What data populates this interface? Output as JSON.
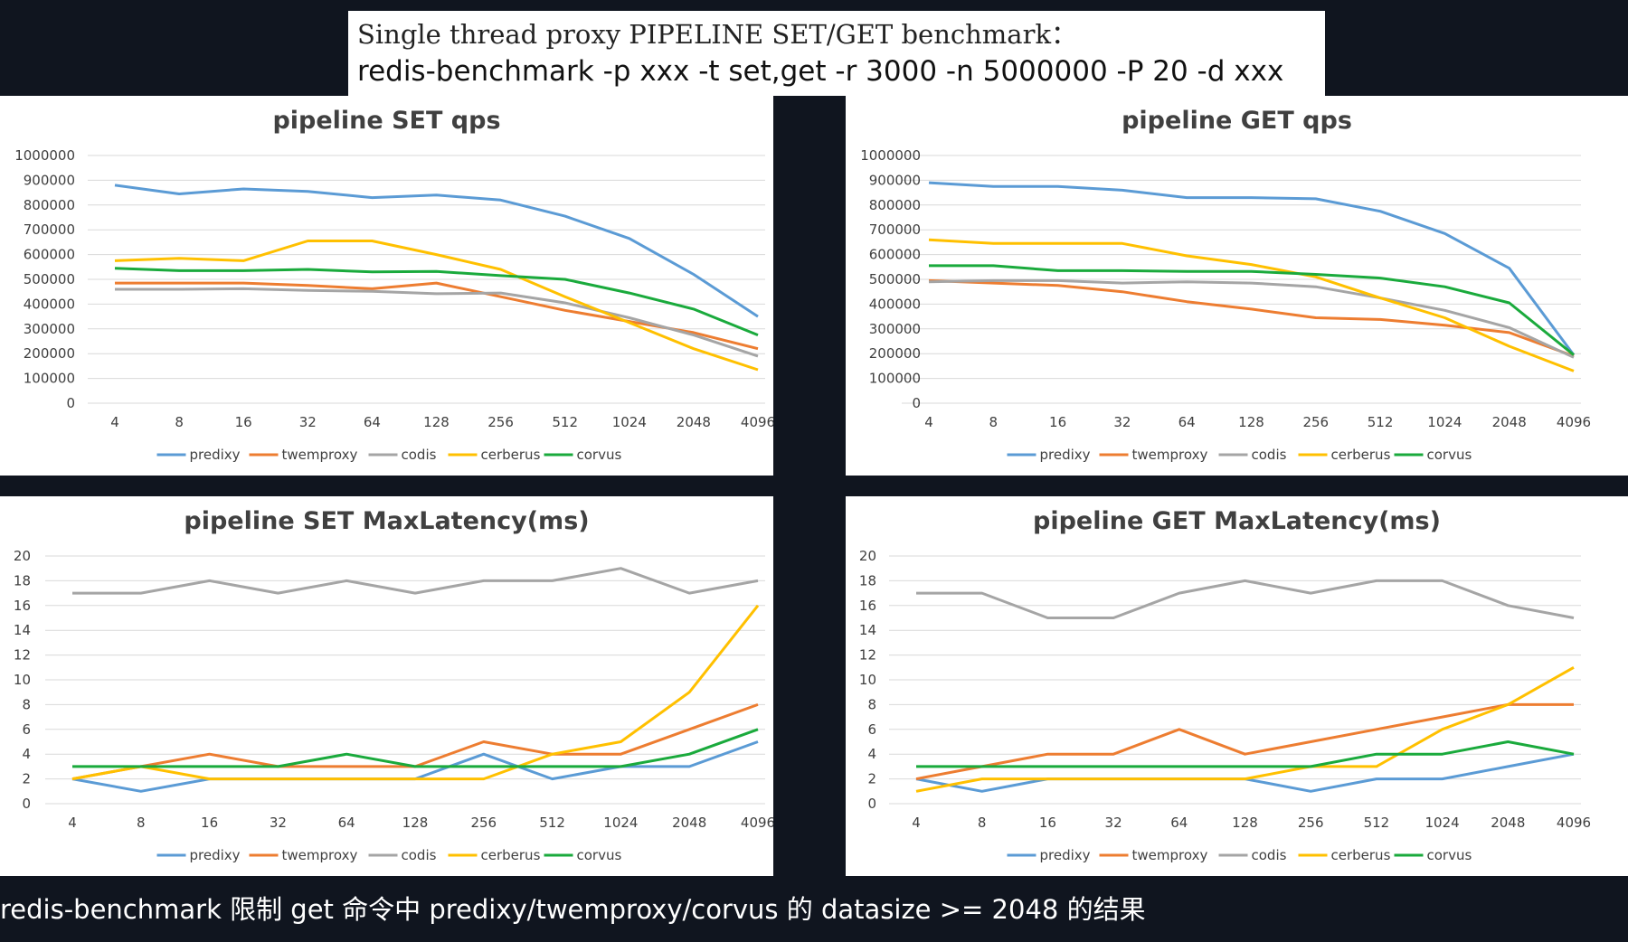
{
  "header": {
    "line1": "Single thread proxy PIPELINE SET/GET benchmark：",
    "line2": "redis-benchmark -p xxx -t set,get -r 3000 -n 5000000 -P 20 -d xxx"
  },
  "footer": {
    "text": "redis-benchmark 限制 get 命令中 predixy/twemproxy/corvus 的 datasize >= 2048 的结果"
  },
  "colors": {
    "predixy": "#5b9bd5",
    "twemproxy": "#ed7d31",
    "codis": "#a5a5a5",
    "cerberus": "#ffc000",
    "corvus": "#1aaa3c"
  },
  "chart_data": [
    {
      "type": "line",
      "title": "pipeline  SET qps",
      "categories": [
        "4",
        "8",
        "16",
        "32",
        "64",
        "128",
        "256",
        "512",
        "1024",
        "2048",
        "4096"
      ],
      "ylim": [
        0,
        1000000
      ],
      "yticks": [
        "0",
        "100000",
        "200000",
        "300000",
        "400000",
        "500000",
        "600000",
        "700000",
        "800000",
        "900000",
        "1000000"
      ],
      "legend": "bottom",
      "grid": true,
      "series": [
        {
          "name": "predixy",
          "values": [
            880000,
            845000,
            865000,
            855000,
            830000,
            840000,
            820000,
            755000,
            665000,
            520000,
            350000
          ]
        },
        {
          "name": "twemproxy",
          "values": [
            485000,
            485000,
            485000,
            475000,
            462000,
            485000,
            430000,
            375000,
            330000,
            285000,
            220000
          ]
        },
        {
          "name": "codis",
          "values": [
            460000,
            460000,
            462000,
            455000,
            452000,
            442000,
            445000,
            405000,
            345000,
            275000,
            190000
          ]
        },
        {
          "name": "cerberus",
          "values": [
            575000,
            585000,
            575000,
            655000,
            655000,
            600000,
            540000,
            430000,
            325000,
            220000,
            135000
          ]
        },
        {
          "name": "corvus",
          "values": [
            545000,
            535000,
            535000,
            540000,
            530000,
            532000,
            515000,
            500000,
            445000,
            380000,
            275000
          ]
        }
      ]
    },
    {
      "type": "line",
      "title": "pipeline  GET qps",
      "categories": [
        "4",
        "8",
        "16",
        "32",
        "64",
        "128",
        "256",
        "512",
        "1024",
        "2048",
        "4096"
      ],
      "ylim": [
        0,
        1000000
      ],
      "yticks": [
        "0",
        "100000",
        "200000",
        "300000",
        "400000",
        "500000",
        "600000",
        "700000",
        "800000",
        "900000",
        "1000000"
      ],
      "legend": "bottom",
      "grid": true,
      "series": [
        {
          "name": "predixy",
          "values": [
            890000,
            875000,
            875000,
            860000,
            830000,
            830000,
            825000,
            775000,
            685000,
            545000,
            195000
          ]
        },
        {
          "name": "twemproxy",
          "values": [
            495000,
            485000,
            475000,
            450000,
            410000,
            380000,
            345000,
            338000,
            315000,
            285000,
            190000
          ]
        },
        {
          "name": "codis",
          "values": [
            490000,
            495000,
            495000,
            485000,
            490000,
            485000,
            470000,
            425000,
            375000,
            305000,
            185000
          ]
        },
        {
          "name": "cerberus",
          "values": [
            660000,
            645000,
            645000,
            645000,
            595000,
            560000,
            510000,
            425000,
            345000,
            230000,
            130000
          ]
        },
        {
          "name": "corvus",
          "values": [
            555000,
            555000,
            535000,
            535000,
            532000,
            532000,
            520000,
            505000,
            470000,
            405000,
            195000
          ]
        }
      ]
    },
    {
      "type": "line",
      "title": "pipeline  SET MaxLatency(ms)",
      "categories": [
        "4",
        "8",
        "16",
        "32",
        "64",
        "128",
        "256",
        "512",
        "1024",
        "2048",
        "4096"
      ],
      "ylim": [
        0,
        20
      ],
      "yticks": [
        "0",
        "2",
        "4",
        "6",
        "8",
        "10",
        "12",
        "14",
        "16",
        "18",
        "20"
      ],
      "legend": "bottom",
      "grid": true,
      "series": [
        {
          "name": "predixy",
          "values": [
            2,
            1,
            2,
            2,
            2,
            2,
            4,
            2,
            3,
            3,
            5
          ]
        },
        {
          "name": "twemproxy",
          "values": [
            2,
            3,
            4,
            3,
            3,
            3,
            5,
            4,
            4,
            6,
            8
          ]
        },
        {
          "name": "codis",
          "values": [
            17,
            17,
            18,
            17,
            18,
            17,
            18,
            18,
            19,
            17,
            18
          ]
        },
        {
          "name": "cerberus",
          "values": [
            2,
            3,
            2,
            2,
            2,
            2,
            2,
            4,
            5,
            9,
            16
          ]
        },
        {
          "name": "corvus",
          "values": [
            3,
            3,
            3,
            3,
            4,
            3,
            3,
            3,
            3,
            4,
            6
          ]
        }
      ]
    },
    {
      "type": "line",
      "title": "pipeline  GET MaxLatency(ms)",
      "categories": [
        "4",
        "8",
        "16",
        "32",
        "64",
        "128",
        "256",
        "512",
        "1024",
        "2048",
        "4096"
      ],
      "ylim": [
        0,
        20
      ],
      "yticks": [
        "0",
        "2",
        "4",
        "6",
        "8",
        "10",
        "12",
        "14",
        "16",
        "18",
        "20"
      ],
      "legend": "bottom",
      "grid": true,
      "series": [
        {
          "name": "predixy",
          "values": [
            2,
            1,
            2,
            2,
            2,
            2,
            1,
            2,
            2,
            3,
            4
          ]
        },
        {
          "name": "twemproxy",
          "values": [
            2,
            3,
            4,
            4,
            6,
            4,
            5,
            6,
            7,
            8,
            8
          ]
        },
        {
          "name": "codis",
          "values": [
            17,
            17,
            15,
            15,
            17,
            18,
            17,
            18,
            18,
            16,
            15
          ]
        },
        {
          "name": "cerberus",
          "values": [
            1,
            2,
            2,
            2,
            2,
            2,
            3,
            3,
            6,
            8,
            11
          ]
        },
        {
          "name": "corvus",
          "values": [
            3,
            3,
            3,
            3,
            3,
            3,
            3,
            4,
            4,
            5,
            4
          ]
        }
      ]
    }
  ]
}
